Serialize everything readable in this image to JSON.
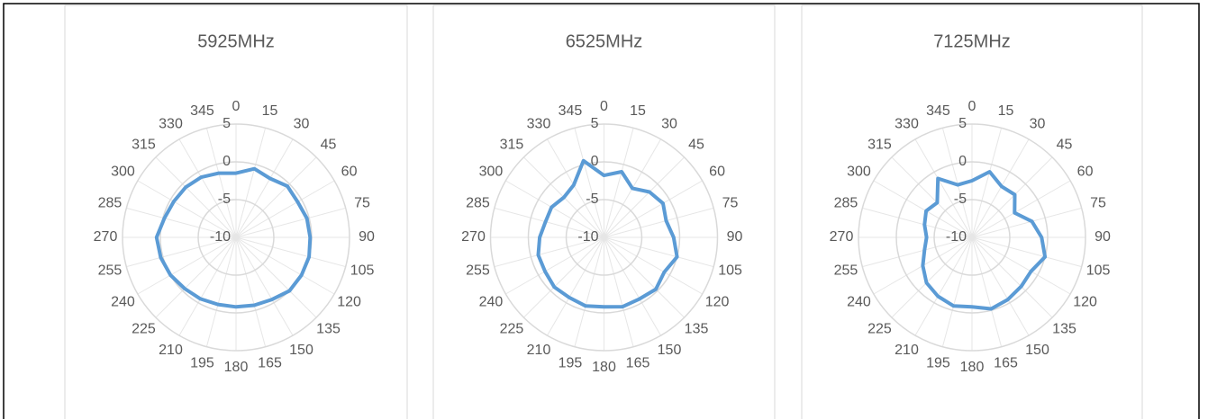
{
  "chart_data": [
    {
      "type": "radar",
      "title": "5925MHz",
      "categories": [
        "0",
        "15",
        "30",
        "45",
        "60",
        "75",
        "90",
        "105",
        "120",
        "135",
        "150",
        "165",
        "180",
        "195",
        "210",
        "225",
        "240",
        "255",
        "270",
        "285",
        "300",
        "315",
        "330",
        "345"
      ],
      "series": [
        {
          "name": "5925MHz",
          "color": "#5b9bd5",
          "values": [
            -1.5,
            -0.6,
            -1.0,
            -0.4,
            -0.6,
            -0.3,
            -0.2,
            0,
            0,
            0,
            -0.5,
            -0.7,
            -0.8,
            -0.8,
            -0.6,
            -0.4,
            0,
            0.3,
            0.5,
            -0.2,
            -0.5,
            -0.6,
            -0.8,
            -1.2
          ]
        }
      ],
      "rlim": [
        -10,
        5
      ],
      "rticks": [
        -10,
        -5,
        0,
        5
      ],
      "grid": true
    },
    {
      "type": "radar",
      "title": "6525MHz",
      "categories": [
        "0",
        "15",
        "30",
        "45",
        "60",
        "75",
        "90",
        "105",
        "120",
        "135",
        "150",
        "165",
        "180",
        "195",
        "210",
        "225",
        "240",
        "255",
        "270",
        "285",
        "300",
        "315",
        "330",
        "345"
      ],
      "series": [
        {
          "name": "6525MHz",
          "color": "#5b9bd5",
          "values": [
            -1.8,
            -1.0,
            -2.5,
            -1.5,
            -1.0,
            -1.5,
            -0.8,
            0,
            -0.8,
            -0.3,
            -0.6,
            -0.5,
            -0.8,
            -0.6,
            -0.8,
            -0.7,
            -1.0,
            -1.0,
            -1.5,
            -2.0,
            -2.0,
            -2.5,
            -2.0,
            0.5
          ]
        }
      ],
      "rlim": [
        -10,
        5
      ],
      "rticks": [
        -10,
        -5,
        0,
        5
      ],
      "grid": true
    },
    {
      "type": "radar",
      "title": "7125MHz",
      "categories": [
        "0",
        "15",
        "30",
        "45",
        "60",
        "75",
        "90",
        "105",
        "120",
        "135",
        "150",
        "165",
        "180",
        "195",
        "210",
        "225",
        "240",
        "255",
        "270",
        "285",
        "300",
        "315",
        "330",
        "345"
      ],
      "series": [
        {
          "name": "7125MHz",
          "color": "#5b9bd5",
          "values": [
            -2.5,
            -1.0,
            -2.2,
            -2.0,
            -3.5,
            -1.8,
            -0.8,
            0,
            -1.0,
            -0.8,
            -0.5,
            -0.2,
            -0.8,
            -0.6,
            -1.0,
            -1.5,
            -2.5,
            -3.5,
            -4.0,
            -3.5,
            -3.0,
            -3.5,
            -1.0,
            -2.8
          ]
        }
      ],
      "rlim": [
        -10,
        5
      ],
      "rticks": [
        -10,
        -5,
        0,
        5
      ],
      "grid": true
    }
  ]
}
